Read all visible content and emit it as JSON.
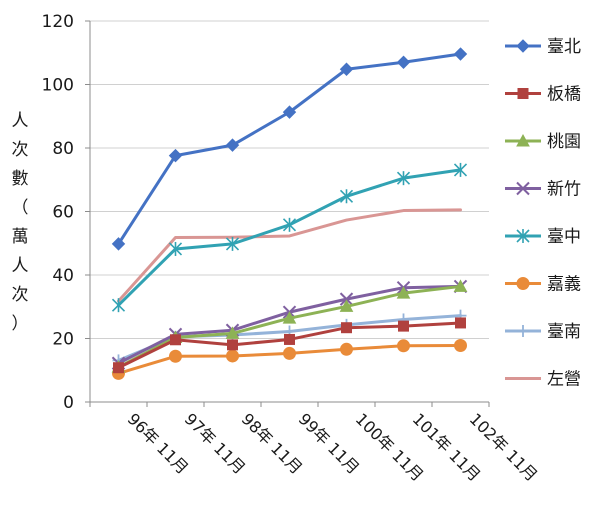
{
  "chart_data": {
    "type": "line",
    "title": "",
    "xlabel": "",
    "ylabel": "人次數（萬人次）",
    "ylim": [
      0,
      120
    ],
    "yticks": [
      0,
      20,
      40,
      60,
      80,
      100,
      120
    ],
    "grid": "horizontal",
    "legend_position": "right",
    "categories": [
      "96年 11月",
      "97年 11月",
      "98年 11月",
      "99年 11月",
      "100年 11月",
      "101年 11月",
      "102年 11月"
    ],
    "series": [
      {
        "name": "臺北",
        "color": "#4472C4",
        "marker": "diamond",
        "values": [
          49.8,
          77.6,
          80.9,
          91.3,
          104.8,
          107.0,
          109.6
        ]
      },
      {
        "name": "板橋",
        "color": "#B0413E",
        "marker": "square",
        "values": [
          10.8,
          19.6,
          18.0,
          19.7,
          23.4,
          23.9,
          24.9
        ]
      },
      {
        "name": "桃園",
        "color": "#8DB255",
        "marker": "triangle",
        "values": [
          11.0,
          20.3,
          21.6,
          26.4,
          30.1,
          34.3,
          36.4
        ]
      },
      {
        "name": "新竹",
        "color": "#7F60A0",
        "marker": "x",
        "values": [
          12.2,
          21.3,
          22.6,
          28.3,
          32.4,
          36.0,
          36.4
        ]
      },
      {
        "name": "臺中",
        "color": "#31A2B3",
        "marker": "star",
        "values": [
          30.5,
          48.2,
          49.8,
          55.8,
          64.8,
          70.5,
          73.1
        ]
      },
      {
        "name": "嘉義",
        "color": "#E98B39",
        "marker": "circle",
        "values": [
          9.0,
          14.4,
          14.5,
          15.3,
          16.6,
          17.7,
          17.8
        ]
      },
      {
        "name": "臺南",
        "color": "#94B3D9",
        "marker": "plus",
        "values": [
          13.1,
          20.5,
          21.1,
          22.2,
          24.3,
          26.0,
          27.2
        ]
      },
      {
        "name": "左營",
        "color": "#D99694",
        "marker": "none",
        "values": [
          31.8,
          51.8,
          51.9,
          52.3,
          57.3,
          60.3,
          60.5
        ]
      }
    ]
  }
}
